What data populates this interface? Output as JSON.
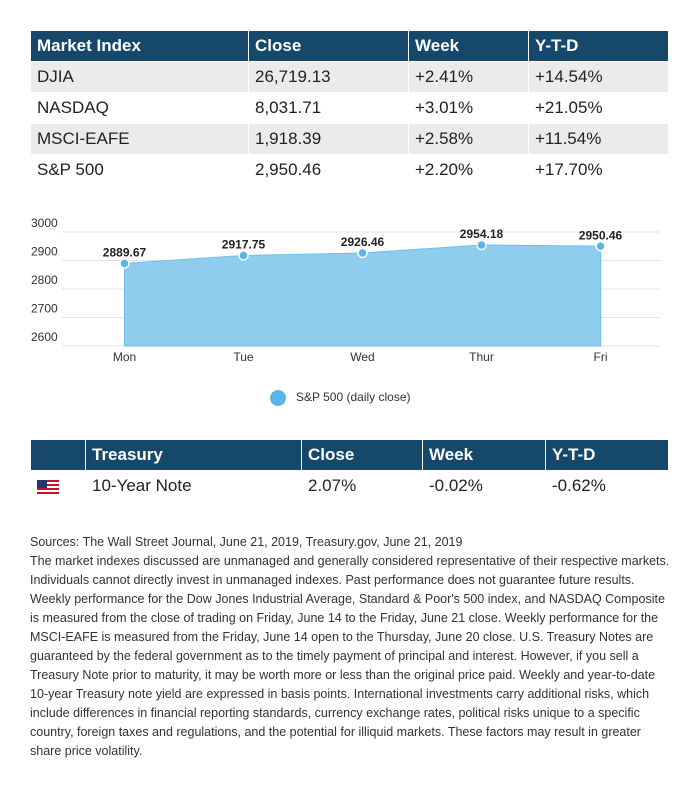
{
  "market_table": {
    "header": [
      "Market Index",
      "Close",
      "Week",
      "Y-T-D"
    ],
    "rows": [
      [
        "DJIA",
        "26,719.13",
        "+2.41%",
        "+14.54%"
      ],
      [
        "NASDAQ",
        "8,031.71",
        "+3.01%",
        "+21.05%"
      ],
      [
        "MSCI-EAFE",
        "1,918.39",
        "+2.58%",
        "+11.54%"
      ],
      [
        "S&P 500",
        "2,950.46",
        "+2.20%",
        "+17.70%"
      ]
    ]
  },
  "chart_data": {
    "type": "area",
    "categories": [
      "Mon",
      "Tue",
      "Wed",
      "Thur",
      "Fri"
    ],
    "series": [
      {
        "name": "S&P 500 (daily close)",
        "color": "#8fcdee",
        "values": [
          2889.67,
          2917.75,
          2926.46,
          2954.18,
          2950.46
        ]
      }
    ],
    "ylim": [
      2600,
      3000
    ],
    "yticks": [
      2600,
      2700,
      2800,
      2900,
      3000
    ],
    "grid": true
  },
  "treasury_table": {
    "header": [
      "Treasury",
      "Close",
      "Week",
      "Y-T-D"
    ],
    "rows": [
      [
        "10-Year Note",
        "2.07%",
        "-0.02%",
        "-0.62%"
      ]
    ]
  },
  "sources": "Sources: The Wall Street Journal, June 21, 2019, Treasury.gov, June 21, 2019",
  "disclaimer": "The market indexes discussed are unmanaged and generally considered representative of their respective markets. Individuals cannot directly invest in unmanaged indexes. Past performance does not guarantee future results. Weekly performance for the Dow Jones Industrial Average, Standard & Poor's 500 index, and NASDAQ Composite is measured from the close of trading on Friday, June 14 to the Friday, June 21 close. Weekly performance for the MSCI-EAFE is measured from the Friday, June 14 open to the Thursday, June 20 close. U.S. Treasury Notes are guaranteed by the federal government as to the timely payment of principal and interest. However, if you sell a Treasury Note prior to maturity, it may be worth more or less than the original price paid. Weekly and year-to-date 10-year Treasury note yield are expressed in basis points. International investments carry additional risks, which include differences in financial reporting standards, currency exchange rates, political risks unique to a specific country, foreign taxes and regulations, and the potential for illiquid markets. These factors may result in greater share price volatility."
}
